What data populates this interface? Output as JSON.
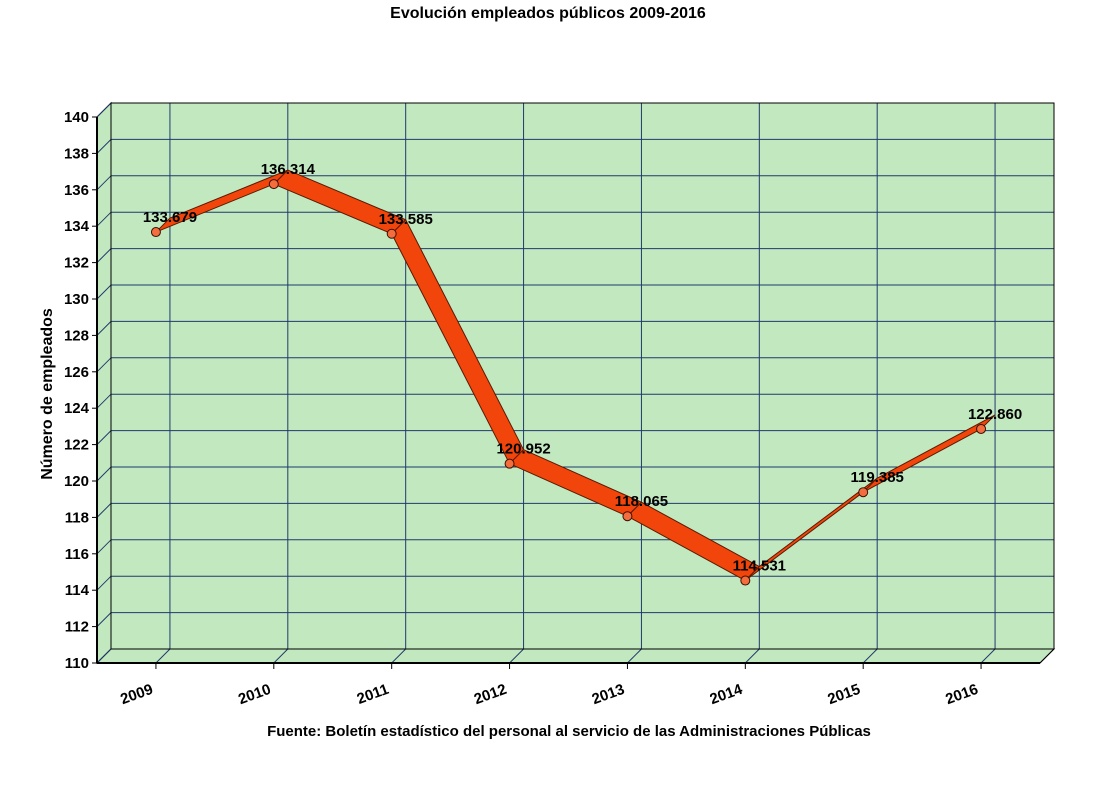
{
  "chart_data": {
    "type": "line",
    "title": "Evolución empleados públicos 2009-2016",
    "xlabel": "",
    "ylabel": "Número de empleados",
    "source": "Fuente: Boletín estadístico del personal al servicio de las Administraciones Públicas",
    "categories": [
      "2009",
      "2010",
      "2011",
      "2012",
      "2013",
      "2014",
      "2015",
      "2016"
    ],
    "values": [
      133.679,
      136.314,
      133.585,
      120.952,
      118.065,
      114.531,
      119.385,
      122.86
    ],
    "data_labels": [
      "133.679",
      "136.314",
      "133.585",
      "120.952",
      "118.065",
      "114.531",
      "119.385",
      "122.860"
    ],
    "ylim": [
      110,
      140
    ],
    "yticks": [
      110,
      112,
      114,
      116,
      118,
      120,
      122,
      124,
      126,
      128,
      130,
      132,
      134,
      136,
      138,
      140
    ],
    "grid": true,
    "legend": "none",
    "colors": {
      "plot_background": "#c2e8c0",
      "grid": "#1f3a6b",
      "line": "#f2450c",
      "marker": "#f36d3e"
    }
  }
}
